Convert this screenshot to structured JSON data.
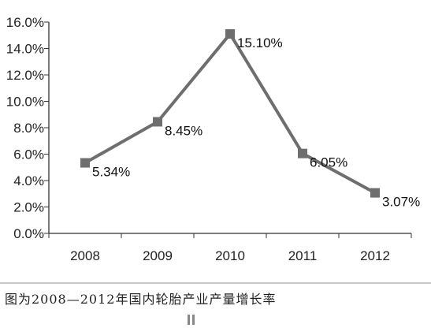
{
  "caption": "图为2008—2012年国内轮胎产业产量增长率",
  "colors": {
    "line": "#6e6e6e",
    "marker": "#6e6e6e",
    "axis": "#333333",
    "text": "#222222"
  },
  "chart_data": {
    "type": "line",
    "title": "",
    "xlabel": "",
    "ylabel": "",
    "categories": [
      "2008",
      "2009",
      "2010",
      "2011",
      "2012"
    ],
    "series": [
      {
        "values": [
          5.34,
          8.45,
          15.1,
          6.05,
          3.07
        ],
        "labels": [
          "5.34%",
          "8.45%",
          "15.10%",
          "6.05%",
          "3.07%"
        ]
      }
    ],
    "ylim": [
      0,
      16
    ],
    "yticks": [
      "0.0%",
      "2.0%",
      "4.0%",
      "6.0%",
      "8.0%",
      "10.0%",
      "12.0%",
      "14.0%",
      "16.0%"
    ],
    "grid": false,
    "legend": "none"
  }
}
